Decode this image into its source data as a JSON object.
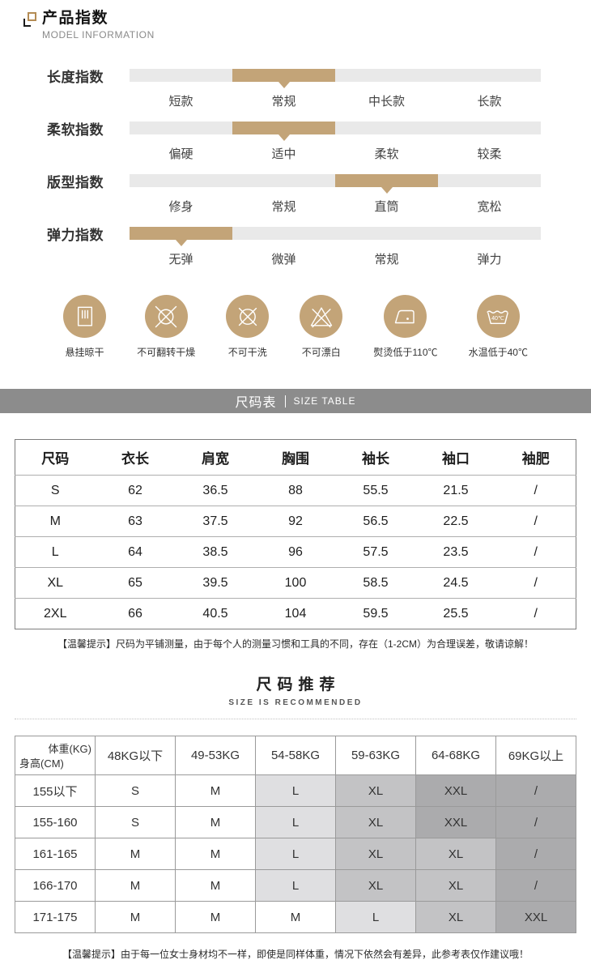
{
  "header": {
    "title": "产品指数",
    "subtitle": "MODEL INFORMATION"
  },
  "indices": [
    {
      "label": "长度指数",
      "active": 1,
      "options": [
        "短款",
        "常规",
        "中长款",
        "长款"
      ]
    },
    {
      "label": "柔软指数",
      "active": 1,
      "options": [
        "偏硬",
        "适中",
        "柔软",
        "较柔"
      ]
    },
    {
      "label": "版型指数",
      "active": 2,
      "options": [
        "修身",
        "常规",
        "直筒",
        "宽松"
      ]
    },
    {
      "label": "弹力指数",
      "active": 0,
      "options": [
        "无弹",
        "微弹",
        "常规",
        "弹力"
      ]
    }
  ],
  "care_icons": [
    {
      "icon": "hang-dry-icon",
      "label": "悬挂晾干"
    },
    {
      "icon": "no-tumble-dry-icon",
      "label": "不可翻转干燥"
    },
    {
      "icon": "no-dry-clean-icon",
      "label": "不可干洗"
    },
    {
      "icon": "no-bleach-icon",
      "label": "不可漂白"
    },
    {
      "icon": "iron-low-temp-icon",
      "label": "熨烫低于110℃"
    },
    {
      "icon": "water-temp-icon",
      "label": "水温低于40℃",
      "inner_text": "40℃"
    }
  ],
  "size_banner": {
    "zh": "尺码表",
    "en": "SIZE TABLE"
  },
  "size_table": {
    "headers": [
      "尺码",
      "衣长",
      "肩宽",
      "胸围",
      "袖长",
      "袖口",
      "袖肥"
    ],
    "rows": [
      [
        "S",
        "62",
        "36.5",
        "88",
        "55.5",
        "21.5",
        "/"
      ],
      [
        "M",
        "63",
        "37.5",
        "92",
        "56.5",
        "22.5",
        "/"
      ],
      [
        "L",
        "64",
        "38.5",
        "96",
        "57.5",
        "23.5",
        "/"
      ],
      [
        "XL",
        "65",
        "39.5",
        "100",
        "58.5",
        "24.5",
        "/"
      ],
      [
        "2XL",
        "66",
        "40.5",
        "104",
        "59.5",
        "25.5",
        "/"
      ]
    ],
    "note": "【温馨提示】尺码为平铺测量，由于每个人的测量习惯和工具的不同，存在（1-2CM）为合理误差，敬请谅解！"
  },
  "recommend": {
    "title": "尺码推荐",
    "subtitle": "SIZE IS RECOMMENDED",
    "corner": {
      "top": "体重(KG)",
      "bottom": "身高(CM)"
    },
    "weight_headers": [
      "48KG以下",
      "49-53KG",
      "54-58KG",
      "59-63KG",
      "64-68KG",
      "69KG以上"
    ],
    "rows": [
      {
        "height": "155以下",
        "cells": [
          {
            "t": "S",
            "shade": 0
          },
          {
            "t": "M",
            "shade": 0
          },
          {
            "t": "L",
            "shade": 1
          },
          {
            "t": "XL",
            "shade": 2
          },
          {
            "t": "XXL",
            "shade": 3
          },
          {
            "t": "/",
            "shade": 3
          }
        ]
      },
      {
        "height": "155-160",
        "cells": [
          {
            "t": "S",
            "shade": 0
          },
          {
            "t": "M",
            "shade": 0
          },
          {
            "t": "L",
            "shade": 1
          },
          {
            "t": "XL",
            "shade": 2
          },
          {
            "t": "XXL",
            "shade": 3
          },
          {
            "t": "/",
            "shade": 3
          }
        ]
      },
      {
        "height": "161-165",
        "cells": [
          {
            "t": "M",
            "shade": 0
          },
          {
            "t": "M",
            "shade": 0
          },
          {
            "t": "L",
            "shade": 1
          },
          {
            "t": "XL",
            "shade": 2
          },
          {
            "t": "XL",
            "shade": 2
          },
          {
            "t": "/",
            "shade": 3
          }
        ]
      },
      {
        "height": "166-170",
        "cells": [
          {
            "t": "M",
            "shade": 0
          },
          {
            "t": "M",
            "shade": 0
          },
          {
            "t": "L",
            "shade": 1
          },
          {
            "t": "XL",
            "shade": 2
          },
          {
            "t": "XL",
            "shade": 2
          },
          {
            "t": "/",
            "shade": 3
          }
        ]
      },
      {
        "height": "171-175",
        "cells": [
          {
            "t": "M",
            "shade": 0
          },
          {
            "t": "M",
            "shade": 0
          },
          {
            "t": "M",
            "shade": 0
          },
          {
            "t": "L",
            "shade": 1
          },
          {
            "t": "XL",
            "shade": 2
          },
          {
            "t": "XXL",
            "shade": 3
          }
        ]
      }
    ],
    "note": "【温馨提示】由于每一位女士身材均不一样，即使是同样体重，情况下依然会有差异，此参考表仅作建议哦！"
  },
  "colors": {
    "accent": "#c3a478",
    "track": "#e9e9e9",
    "banner_bg": "#8c8c8c",
    "shade_light": "#dfdfe1",
    "shade_medium": "#c3c3c5",
    "shade_dark": "#ababad"
  }
}
